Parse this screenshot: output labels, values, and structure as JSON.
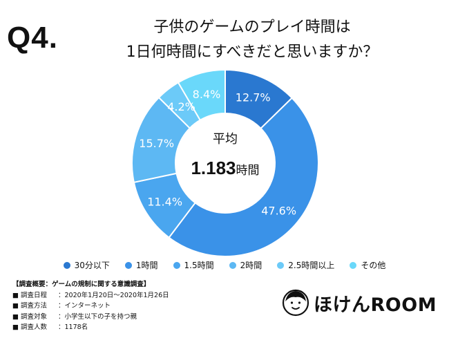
{
  "question_label": "Q4.",
  "title": {
    "line1": "子供のゲームのプレイ時間は",
    "line2": "1日何時間にすべきだと思いますか？"
  },
  "center": {
    "label": "平均",
    "value": "1.183",
    "unit": "時間"
  },
  "chart_data": {
    "type": "pie",
    "style": "donut",
    "categories": [
      "30分以下",
      "1時間",
      "1.5時間",
      "2時間",
      "2.5時間以上",
      "その他"
    ],
    "values": [
      12.7,
      47.6,
      11.4,
      15.7,
      4.2,
      8.4
    ],
    "value_labels": [
      "12.7%",
      "47.6%",
      "11.4%",
      "15.7%",
      "4.2%",
      "8.4%"
    ],
    "colors": [
      "#2a78d0",
      "#3a92e8",
      "#4aa6ef",
      "#5db8f3",
      "#6ccaf8",
      "#6ad8fa"
    ],
    "legend_position": "bottom",
    "start_angle": "top",
    "direction": "clockwise"
  },
  "survey": {
    "title": "【調査概要：ゲームの規制に関する意識調査】",
    "rows": [
      {
        "bullet": "■",
        "key": "調査日程",
        "value": "：2020年1月20日～2020年1月26日"
      },
      {
        "bullet": "■",
        "key": "調査方法",
        "value": "：インターネット"
      },
      {
        "bullet": "■",
        "key": "調査対象",
        "value": "：小学生以下の子を持つ親"
      },
      {
        "bullet": "■",
        "key": "調査人数",
        "value": "：1178名"
      }
    ]
  },
  "brand": {
    "name": "ほけんROOM",
    "icon": "person-face-icon"
  }
}
